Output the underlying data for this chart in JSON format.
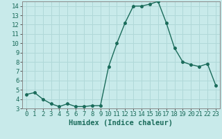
{
  "xlabel": "Humidex (Indice chaleur)",
  "x": [
    0,
    1,
    2,
    3,
    4,
    5,
    6,
    7,
    8,
    9,
    10,
    11,
    12,
    13,
    14,
    15,
    16,
    17,
    18,
    19,
    20,
    21,
    22,
    23
  ],
  "y": [
    4.5,
    4.7,
    4.0,
    3.5,
    3.2,
    3.5,
    3.2,
    3.2,
    3.3,
    3.3,
    7.5,
    10.0,
    12.2,
    14.0,
    14.0,
    14.2,
    14.5,
    12.2,
    9.5,
    8.0,
    7.7,
    7.5,
    7.8,
    5.5
  ],
  "line_color": "#1a6b5a",
  "marker": "o",
  "marker_size": 2.5,
  "bg_color": "#c8eaea",
  "grid_color": "#b0d8d8",
  "axis_color": "#555555",
  "ylim": [
    3,
    14.5
  ],
  "xlim": [
    -0.5,
    23.5
  ],
  "yticks": [
    3,
    4,
    5,
    6,
    7,
    8,
    9,
    10,
    11,
    12,
    13,
    14
  ],
  "xticks": [
    0,
    1,
    2,
    3,
    4,
    5,
    6,
    7,
    8,
    9,
    10,
    11,
    12,
    13,
    14,
    15,
    16,
    17,
    18,
    19,
    20,
    21,
    22,
    23
  ],
  "tick_fontsize": 6.5,
  "label_fontsize": 7.5
}
